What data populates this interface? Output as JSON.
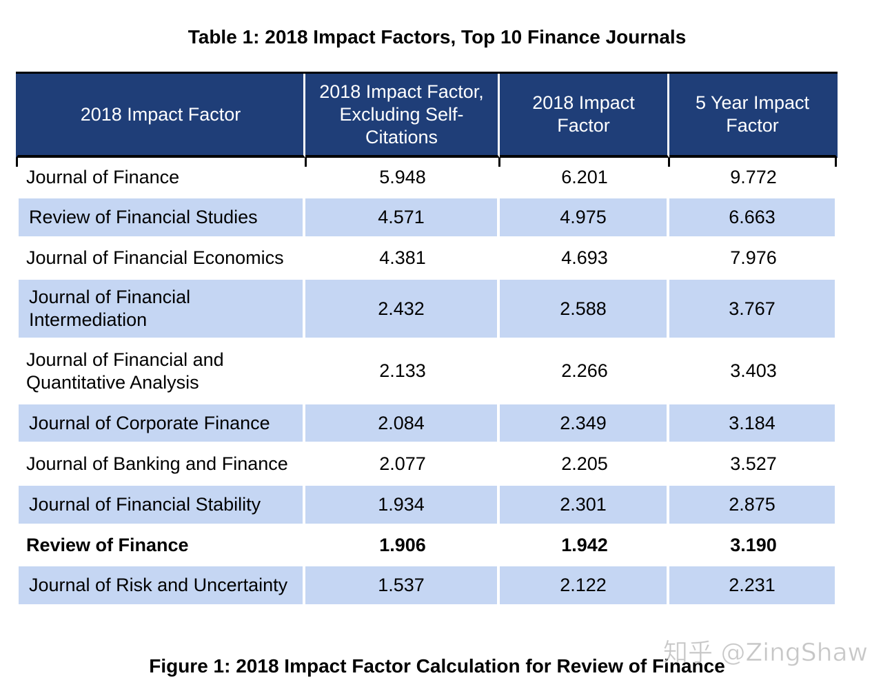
{
  "table": {
    "title": "Table 1: 2018 Impact Factors, Top 10 Finance Journals",
    "headers": [
      "2018 Impact Factor",
      "2018 Impact Factor, Excluding Self-Citations",
      "2018 Impact Factor",
      "5 Year Impact Factor"
    ],
    "rows": [
      {
        "journal": "Journal of Finance",
        "excl_self": "5.948",
        "impact_2018": "6.201",
        "impact_5yr": "9.772"
      },
      {
        "journal": "Review of Financial Studies",
        "excl_self": "4.571",
        "impact_2018": "4.975",
        "impact_5yr": "6.663"
      },
      {
        "journal": "Journal of Financial Economics",
        "excl_self": "4.381",
        "impact_2018": "4.693",
        "impact_5yr": "7.976"
      },
      {
        "journal": "Journal of Financial Intermediation",
        "excl_self": "2.432",
        "impact_2018": "2.588",
        "impact_5yr": "3.767"
      },
      {
        "journal": "Journal of Financial and Quantitative Analysis",
        "excl_self": "2.133",
        "impact_2018": "2.266",
        "impact_5yr": "3.403"
      },
      {
        "journal": "Journal of Corporate Finance",
        "excl_self": "2.084",
        "impact_2018": "2.349",
        "impact_5yr": "3.184"
      },
      {
        "journal": "Journal of Banking and Finance",
        "excl_self": "2.077",
        "impact_2018": "2.205",
        "impact_5yr": "3.527"
      },
      {
        "journal": "Journal of Financial Stability",
        "excl_self": "1.934",
        "impact_2018": "2.301",
        "impact_5yr": "2.875"
      },
      {
        "journal": "Review of Finance",
        "excl_self": "1.906",
        "impact_2018": "1.942",
        "impact_5yr": "3.190"
      },
      {
        "journal": "Journal of Risk and Uncertainty",
        "excl_self": "1.537",
        "impact_2018": "2.122",
        "impact_5yr": "2.231"
      }
    ],
    "highlight_row_index": 8,
    "header_color": "#1f3e78",
    "shade_color": "#c5d6f3"
  },
  "figure_caption": "Figure 1: 2018 Impact Factor Calculation for Review of Finance",
  "watermark": "知乎 @ZingShaw"
}
